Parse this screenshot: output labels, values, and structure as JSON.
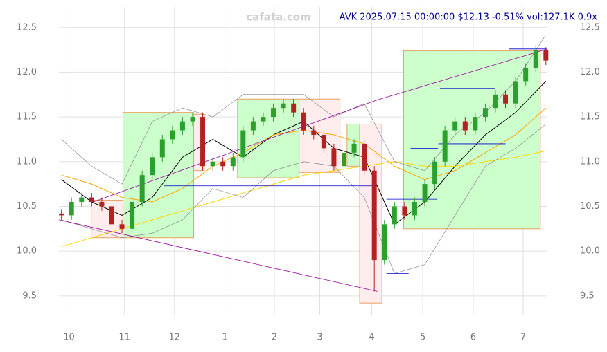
{
  "chart_data": {
    "type": "candlestick",
    "title": "AVK 2025.07.15 00:00:00 $12.13 -0.51% vol:127.1K 0.9x",
    "watermark": "cafata.com",
    "x": [
      -0.15,
      0.05,
      0.25,
      0.45,
      0.65,
      0.85,
      1.05,
      1.25,
      1.45,
      1.65,
      1.85,
      2.05,
      2.25,
      2.45,
      2.65,
      2.85,
      3.05,
      3.25,
      3.45,
      3.65,
      3.85,
      4.05,
      4.25,
      4.45,
      4.65,
      4.85,
      5.05,
      5.25,
      5.45,
      5.65,
      5.85,
      6.05,
      6.25,
      6.45,
      6.65,
      6.85,
      7.05,
      7.25,
      7.45,
      7.65,
      7.85,
      8.05,
      8.25,
      8.45,
      8.65,
      8.85,
      9.05,
      9.25,
      9.45
    ],
    "open": [
      10.42,
      10.4,
      10.55,
      10.6,
      10.55,
      10.5,
      10.3,
      10.25,
      10.55,
      10.85,
      11.05,
      11.25,
      11.35,
      11.45,
      11.5,
      10.95,
      11.0,
      10.95,
      11.05,
      11.35,
      11.45,
      11.5,
      11.6,
      11.65,
      11.55,
      11.35,
      11.3,
      11.15,
      10.95,
      11.1,
      11.2,
      10.9,
      9.9,
      10.3,
      10.5,
      10.4,
      10.55,
      10.75,
      11.0,
      11.35,
      11.45,
      11.35,
      11.5,
      11.6,
      11.75,
      11.65,
      11.9,
      12.05,
      12.25
    ],
    "high": [
      10.47,
      10.6,
      10.65,
      10.65,
      10.6,
      10.55,
      10.35,
      10.6,
      10.9,
      11.1,
      11.3,
      11.4,
      11.5,
      11.55,
      11.55,
      11.05,
      11.05,
      11.1,
      11.4,
      11.5,
      11.55,
      11.65,
      11.7,
      11.7,
      11.6,
      11.4,
      11.35,
      11.2,
      11.15,
      11.25,
      11.25,
      10.95,
      10.35,
      10.55,
      10.55,
      10.6,
      10.8,
      11.05,
      11.4,
      11.5,
      11.5,
      11.55,
      11.65,
      11.8,
      11.8,
      11.95,
      12.1,
      12.3,
      12.28
    ],
    "low": [
      10.35,
      10.35,
      10.5,
      10.5,
      10.45,
      10.25,
      10.2,
      10.2,
      10.5,
      10.8,
      11.0,
      11.2,
      11.3,
      11.4,
      10.9,
      10.9,
      10.9,
      10.9,
      11.0,
      11.3,
      11.4,
      11.45,
      11.55,
      11.5,
      11.3,
      11.25,
      11.1,
      10.9,
      10.9,
      11.05,
      10.85,
      9.55,
      9.85,
      10.25,
      10.35,
      10.35,
      10.5,
      10.7,
      10.95,
      11.3,
      11.3,
      11.3,
      11.45,
      11.55,
      11.6,
      11.6,
      11.85,
      12.0,
      12.08
    ],
    "close": [
      10.4,
      10.55,
      10.6,
      10.55,
      10.5,
      10.3,
      10.25,
      10.55,
      10.85,
      11.05,
      11.25,
      11.35,
      11.45,
      11.5,
      10.95,
      11.0,
      10.95,
      11.05,
      11.35,
      11.45,
      11.5,
      11.6,
      11.65,
      11.55,
      11.35,
      11.3,
      11.15,
      10.95,
      11.1,
      11.2,
      10.9,
      9.9,
      10.3,
      10.5,
      10.4,
      10.55,
      10.75,
      11.0,
      11.35,
      11.45,
      11.35,
      11.5,
      11.6,
      11.75,
      11.65,
      11.9,
      12.05,
      12.25,
      12.13
    ],
    "up_color": "#2ca02c",
    "down_color": "#b22222",
    "overlay_x": [
      -0.15,
      0.45,
      1.05,
      1.65,
      2.25,
      2.85,
      3.45,
      4.05,
      4.65,
      5.25,
      5.85,
      6.45,
      7.05,
      7.65,
      8.25,
      8.85,
      9.45
    ],
    "overlays": [
      {
        "color": "#000000",
        "values": [
          10.8,
          10.55,
          10.4,
          10.6,
          11.05,
          11.25,
          11.05,
          11.3,
          11.45,
          11.15,
          11.05,
          10.3,
          10.55,
          10.95,
          11.3,
          11.55,
          11.9
        ]
      },
      {
        "color": "#ffa500",
        "values": [
          10.85,
          10.75,
          10.6,
          10.55,
          10.7,
          10.95,
          11.1,
          11.3,
          11.35,
          11.3,
          11.2,
          10.95,
          10.8,
          10.9,
          11.1,
          11.3,
          11.6
        ]
      },
      {
        "color": "#ffd700",
        "values": [
          10.05,
          10.15,
          10.25,
          10.35,
          10.45,
          10.55,
          10.65,
          10.75,
          10.85,
          10.9,
          10.95,
          11.0,
          10.95,
          10.95,
          11.0,
          11.05,
          11.12
        ]
      },
      {
        "color": "#888888",
        "values": [
          11.25,
          10.95,
          10.75,
          11.45,
          11.6,
          11.5,
          11.75,
          11.75,
          11.75,
          11.5,
          11.65,
          11.0,
          10.9,
          11.3,
          11.55,
          11.9,
          12.42
        ]
      },
      {
        "color": "#888888",
        "values": [
          10.35,
          10.25,
          10.15,
          10.2,
          10.35,
          10.7,
          10.6,
          10.9,
          11.0,
          10.95,
          10.6,
          9.75,
          9.85,
          10.4,
          10.95,
          11.15,
          11.42
        ]
      }
    ],
    "boxes": [
      {
        "x0": 0.44,
        "x1": 1.07,
        "y0": 10.15,
        "y1": 10.57,
        "color": "#ffecec"
      },
      {
        "x0": 1.07,
        "x1": 2.47,
        "y0": 10.15,
        "y1": 11.55,
        "color": "#ccffcc"
      },
      {
        "x0": 2.47,
        "x1": 2.68,
        "y0": 10.9,
        "y1": 11.53,
        "color": "#ffecec"
      },
      {
        "x0": 3.34,
        "x1": 4.56,
        "y0": 10.82,
        "y1": 11.7,
        "color": "#ccffcc"
      },
      {
        "x0": 4.56,
        "x1": 5.37,
        "y0": 10.88,
        "y1": 11.7,
        "color": "#ffecec"
      },
      {
        "x0": 5.51,
        "x1": 5.76,
        "y0": 10.95,
        "y1": 11.42,
        "color": "#ccffcc"
      },
      {
        "x0": 5.76,
        "x1": 6.2,
        "y0": 9.42,
        "y1": 11.42,
        "color": "#ffecec"
      },
      {
        "x0": 6.63,
        "x1": 9.34,
        "y0": 10.25,
        "y1": 12.24,
        "color": "#ccffcc"
      }
    ],
    "levels": [
      {
        "x0": 1.88,
        "x1": 6.11,
        "y": 11.69
      },
      {
        "x0": 1.88,
        "x1": 6.11,
        "y": 10.73
      },
      {
        "x0": 6.29,
        "x1": 6.73,
        "y": 9.75
      },
      {
        "x0": 6.29,
        "x1": 7.3,
        "y": 10.58
      },
      {
        "x0": 6.77,
        "x1": 7.31,
        "y": 11.15
      },
      {
        "x0": 7.32,
        "x1": 8.65,
        "y": 11.2
      },
      {
        "x0": 7.35,
        "x1": 8.45,
        "y": 11.82
      },
      {
        "x0": 8.72,
        "x1": 9.48,
        "y": 11.52
      },
      {
        "x0": 8.72,
        "x1": 9.48,
        "y": 12.26
      }
    ],
    "trendlines": [
      {
        "x0": -0.2,
        "y0": 10.35,
        "x1": 6.11,
        "y1": 9.55
      },
      {
        "x0": 0.48,
        "y0": 10.55,
        "x1": 6.11,
        "y1": 11.69
      },
      {
        "x0": 6.11,
        "y0": 11.69,
        "x1": 9.48,
        "y1": 12.26
      }
    ],
    "xlim": [
      -0.2,
      9.48
    ],
    "ylim": [
      9.29,
      12.73
    ],
    "xticks": [
      {
        "value": 0,
        "label": "10"
      },
      {
        "value": 1.1,
        "label": "11"
      },
      {
        "value": 2.09,
        "label": "12"
      },
      {
        "value": 3.09,
        "label": "1"
      },
      {
        "value": 4.07,
        "label": "2"
      },
      {
        "value": 4.97,
        "label": "3"
      },
      {
        "value": 6.0,
        "label": "4"
      },
      {
        "value": 7.01,
        "label": "5"
      },
      {
        "value": 8.01,
        "label": "6"
      },
      {
        "value": 9.0,
        "label": "7"
      }
    ],
    "yticks": [
      9.5,
      {
        "value": 10,
        "label": "10.0"
      },
      10.5,
      {
        "value": 11,
        "label": "11.0"
      },
      11.5,
      {
        "value": 12,
        "label": "12.0"
      },
      12.5
    ],
    "grid": true
  }
}
